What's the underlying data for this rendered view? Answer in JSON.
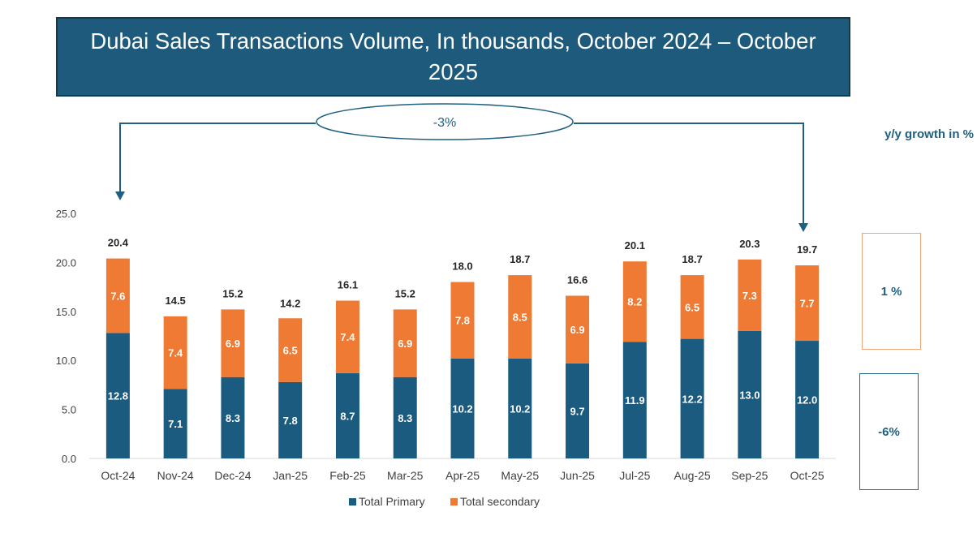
{
  "title": "Dubai Sales Transactions Volume, In thousands, October 2024 – October 2025",
  "annotation": {
    "overall_change": "-3%"
  },
  "growth": {
    "header": "y/y growth in %",
    "secondary": "1 %",
    "primary": "-6%"
  },
  "chart_data": {
    "type": "bar",
    "stacked": true,
    "title": "Dubai Sales Transactions Volume, In thousands, October 2024 – October 2025",
    "xlabel": "",
    "ylabel": "",
    "ylim": [
      0,
      25
    ],
    "yticks": [
      0,
      5,
      10,
      15,
      20,
      25
    ],
    "ytick_labels": [
      "0.0",
      "5.0",
      "10.0",
      "15.0",
      "20.0",
      "25.0"
    ],
    "grid": false,
    "legend_position": "bottom",
    "categories": [
      "Oct-24",
      "Nov-24",
      "Dec-24",
      "Jan-25",
      "Feb-25",
      "Mar-25",
      "Apr-25",
      "May-25",
      "Jun-25",
      "Jul-25",
      "Aug-25",
      "Sep-25",
      "Oct-25"
    ],
    "series": [
      {
        "name": "Total Primary",
        "color": "#1b5b80",
        "values": [
          12.8,
          7.1,
          8.3,
          7.8,
          8.7,
          8.3,
          10.2,
          10.2,
          9.7,
          11.9,
          12.2,
          13.0,
          12.0
        ],
        "labels": [
          "12.8",
          "7.1",
          "8.3",
          "7.8",
          "8.7",
          "8.3",
          "10.2",
          "10.2",
          "9.7",
          "11.9",
          "12.2",
          "13.0",
          "12.0"
        ]
      },
      {
        "name": "Total secondary",
        "color": "#ee7a34",
        "values": [
          7.6,
          7.4,
          6.9,
          6.5,
          7.4,
          6.9,
          7.8,
          8.5,
          6.9,
          8.2,
          6.5,
          7.3,
          7.7
        ],
        "labels": [
          "7.6",
          "7.4",
          "6.9",
          "6.5",
          "7.4",
          "6.9",
          "7.8",
          "8.5",
          "6.9",
          "8.2",
          "6.5",
          "7.3",
          "7.7"
        ]
      }
    ],
    "totals": [
      20.4,
      14.5,
      15.2,
      14.2,
      16.1,
      15.2,
      18.0,
      18.7,
      16.6,
      20.1,
      18.7,
      20.3,
      19.7
    ],
    "total_labels": [
      "20.4",
      "14.5",
      "15.2",
      "14.2",
      "16.1",
      "15.2",
      "18.0",
      "18.7",
      "16.6",
      "20.1",
      "18.7",
      "20.3",
      "19.7"
    ]
  }
}
